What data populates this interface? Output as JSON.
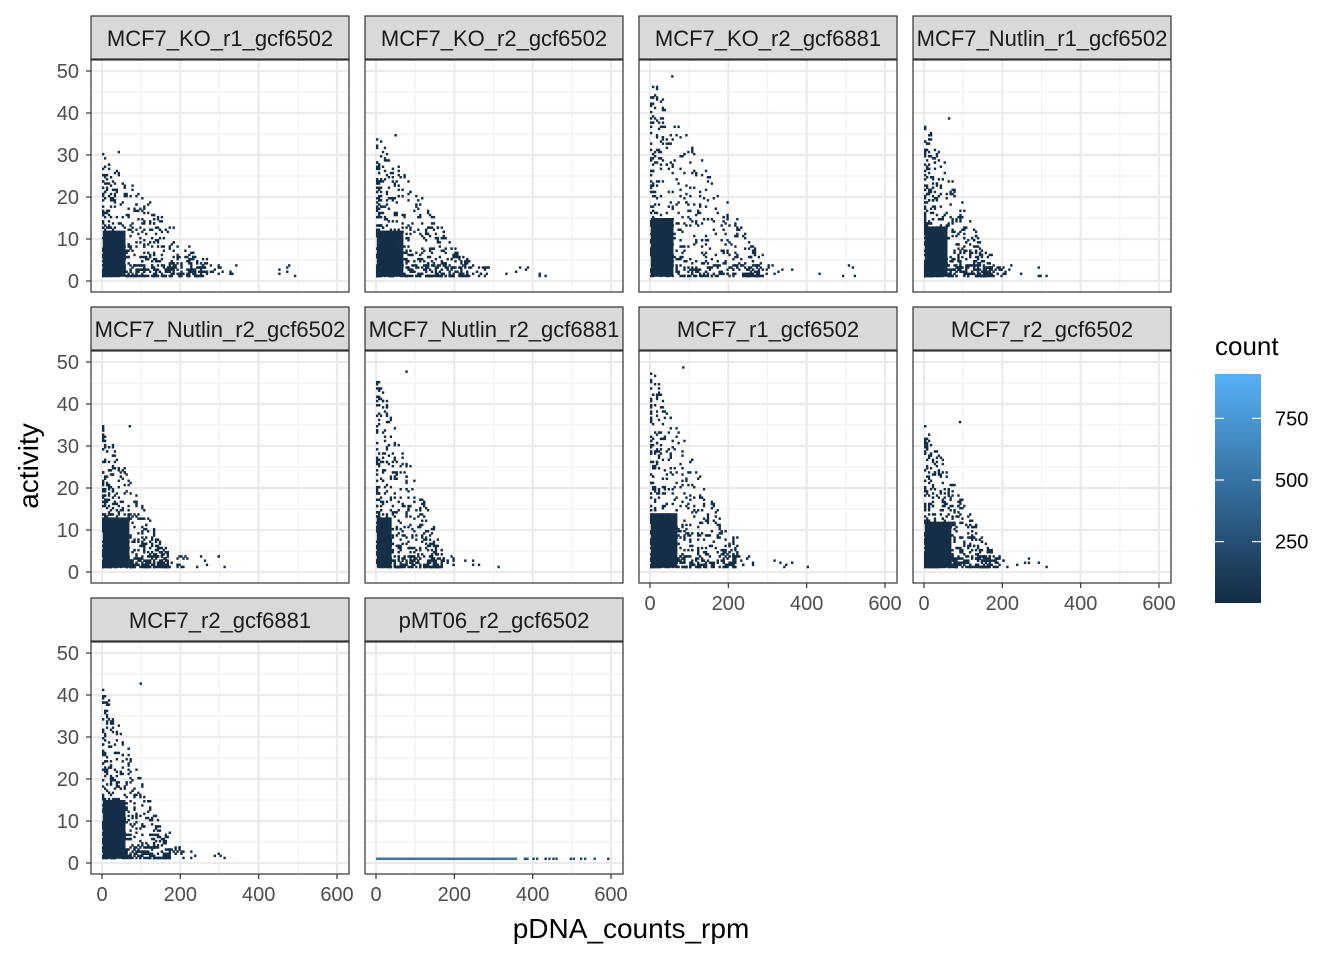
{
  "chart_data": {
    "type": "heatmap",
    "subtype": "faceted 2D bin (density) plot",
    "xlabel": "pDNA_counts_rpm",
    "ylabel": "activity",
    "xlim": [
      0,
      600
    ],
    "ylim": [
      0,
      50
    ],
    "x_ticks": [
      0,
      200,
      400,
      600
    ],
    "y_ticks": [
      0,
      10,
      20,
      30,
      40,
      50
    ],
    "grid": true,
    "legend": {
      "title": "count",
      "placement": "right",
      "breaks": [
        250,
        500,
        750
      ],
      "range": [
        1,
        930
      ],
      "colors": {
        "low": "#132B43",
        "high": "#56B1F7"
      }
    },
    "facets": [
      {
        "name": "MCF7_KO_r1_gcf6502",
        "max_x": 490,
        "max_y": 31,
        "core_x": 60,
        "core_y": 12
      },
      {
        "name": "MCF7_KO_r2_gcf6502",
        "max_x": 430,
        "max_y": 35,
        "core_x": 70,
        "core_y": 12
      },
      {
        "name": "MCF7_KO_r2_gcf6881",
        "max_x": 520,
        "max_y": 49,
        "core_x": 60,
        "core_y": 15
      },
      {
        "name": "MCF7_Nutlin_r1_gcf6502",
        "max_x": 310,
        "max_y": 39,
        "core_x": 60,
        "core_y": 13
      },
      {
        "name": "MCF7_Nutlin_r2_gcf6502",
        "max_x": 310,
        "max_y": 35,
        "core_x": 70,
        "core_y": 13
      },
      {
        "name": "MCF7_Nutlin_r2_gcf6881",
        "max_x": 310,
        "max_y": 48,
        "core_x": 40,
        "core_y": 13
      },
      {
        "name": "MCF7_r1_gcf6502",
        "max_x": 400,
        "max_y": 49,
        "core_x": 70,
        "core_y": 14
      },
      {
        "name": "MCF7_r2_gcf6502",
        "max_x": 310,
        "max_y": 36,
        "core_x": 70,
        "core_y": 12
      },
      {
        "name": "MCF7_r2_gcf6881",
        "max_x": 310,
        "max_y": 43,
        "core_x": 60,
        "core_y": 15
      },
      {
        "name": "pMT06_r2_gcf6502",
        "max_x": 590,
        "max_y": 1,
        "core_x": 360,
        "core_y": 1,
        "flat": true
      }
    ]
  }
}
